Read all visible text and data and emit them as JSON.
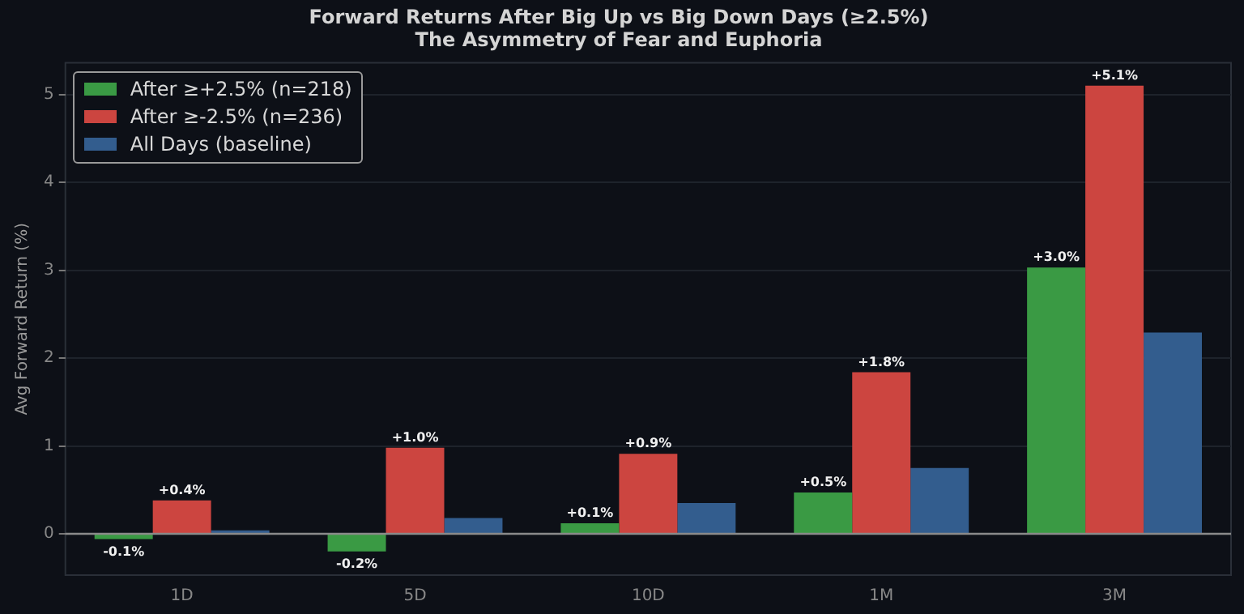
{
  "chart_data": {
    "type": "bar",
    "title": "Forward Returns After Big Up vs Big Down Days (≥2.5%)",
    "subtitle": "The Asymmetry of Fear and Euphoria",
    "ylabel": "Avg Forward Return (%)",
    "categories": [
      "1D",
      "5D",
      "10D",
      "1M",
      "3M"
    ],
    "series": [
      {
        "name": "After ≥+2.5% (n=218)",
        "color": "#3a9a44",
        "values": [
          -0.06,
          -0.2,
          0.12,
          0.47,
          3.03
        ],
        "value_labels": [
          "-0.1%",
          "-0.2%",
          "+0.1%",
          "+0.5%",
          "+3.0%"
        ]
      },
      {
        "name": "After ≥-2.5% (n=236)",
        "color": "#cc4540",
        "values": [
          0.38,
          0.98,
          0.91,
          1.84,
          5.1
        ],
        "value_labels": [
          "+0.4%",
          "+1.0%",
          "+0.9%",
          "+1.8%",
          "+5.1%"
        ]
      },
      {
        "name": "All Days (baseline)",
        "color": "#335d8e",
        "values": [
          0.04,
          0.18,
          0.35,
          0.75,
          2.29
        ]
      }
    ],
    "ylim": [
      -0.47,
      5.36
    ],
    "yticks": [
      0,
      1,
      2,
      3,
      4,
      5
    ],
    "grid": "y",
    "legend": "top left",
    "ref_lines": [
      {
        "axis": "y",
        "value": 0,
        "color": "#8a8a8a"
      }
    ]
  }
}
